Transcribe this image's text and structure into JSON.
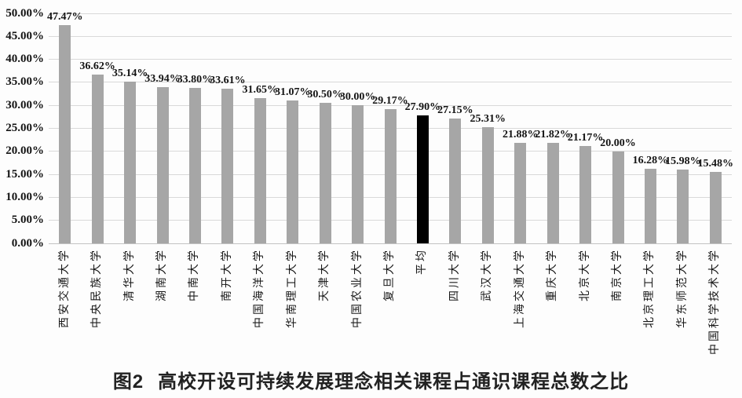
{
  "figure": {
    "caption_prefix": "图2",
    "caption_title": "高校开设可持续发展理念相关课程占通识课程总数之比"
  },
  "chart_data": {
    "type": "bar",
    "title": "图2 高校开设可持续发展理念相关课程占通识课程总数之比",
    "xlabel": "",
    "ylabel": "",
    "categories": [
      "西安交通大学",
      "中央民族大学",
      "清华大学",
      "湖南大学",
      "中南大学",
      "南开大学",
      "中国海洋大学",
      "华南理工大学",
      "天津大学",
      "中国农业大学",
      "复旦大学",
      "平均",
      "四川大学",
      "武汉大学",
      "上海交通大学",
      "重庆大学",
      "北京大学",
      "南京大学",
      "北京理工大学",
      "华东师范大学",
      "中国科学技术大学"
    ],
    "values": [
      47.47,
      36.62,
      35.14,
      33.94,
      33.8,
      33.61,
      31.65,
      31.07,
      30.5,
      30.0,
      29.17,
      27.9,
      27.15,
      25.31,
      21.88,
      21.82,
      21.17,
      20.0,
      16.28,
      15.98,
      15.48
    ],
    "value_labels": [
      "47.47%",
      "36.62%",
      "35.14%",
      "33.94%",
      "33.80%",
      "33.61%",
      "31.65%",
      "31.07%",
      "30.50%",
      "30.00%",
      "29.17%",
      "27.90%",
      "27.15%",
      "25.31%",
      "21.88%",
      "21.82%",
      "21.17%",
      "20.00%",
      "16.28%",
      "15.98%",
      "15.48%"
    ],
    "highlight_category": "平均",
    "ylim": [
      0,
      50
    ],
    "yticks": [
      0,
      5,
      10,
      15,
      20,
      25,
      30,
      35,
      40,
      45,
      50
    ],
    "ytick_labels": [
      "0.00%",
      "5.00%",
      "10.00%",
      "15.00%",
      "20.00%",
      "25.00%",
      "30.00%",
      "35.00%",
      "40.00%",
      "45.00%",
      "50.00%"
    ],
    "grid": true,
    "legend": "none",
    "bar_color": "#a6a6a6",
    "highlight_color": "#000000",
    "gridline_color": "#d9d9d9",
    "text_color": "#141414"
  }
}
